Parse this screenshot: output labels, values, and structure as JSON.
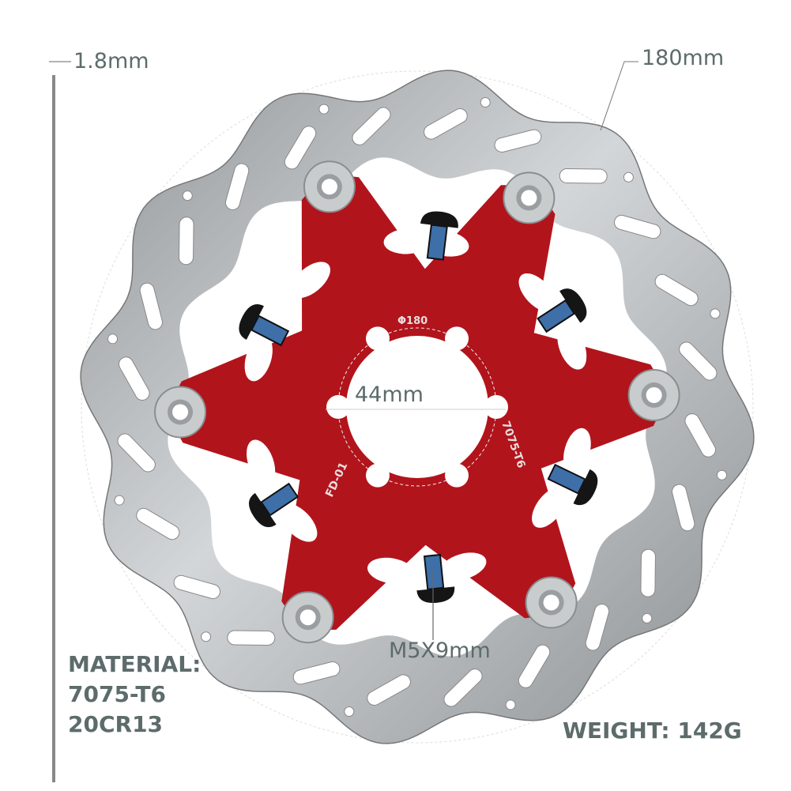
{
  "labels": {
    "thickness": "1.8mm",
    "diameter": "180mm",
    "center_hole": "44mm",
    "bolt_size": "M5X9mm",
    "material_title": "MATERIAL:",
    "material_1": "7075-T6",
    "material_2": "20CR13",
    "weight": "WEIGHT: 142G"
  },
  "rotor_markings": {
    "size": "Φ180",
    "model": "FD-01",
    "alloy": "7075-T6"
  },
  "colors": {
    "text": "#5d6b6b",
    "carrier_red": "#b2141c",
    "rotor_steel": "#b9bcbe",
    "bolt_blue": "#3e6fa8"
  }
}
